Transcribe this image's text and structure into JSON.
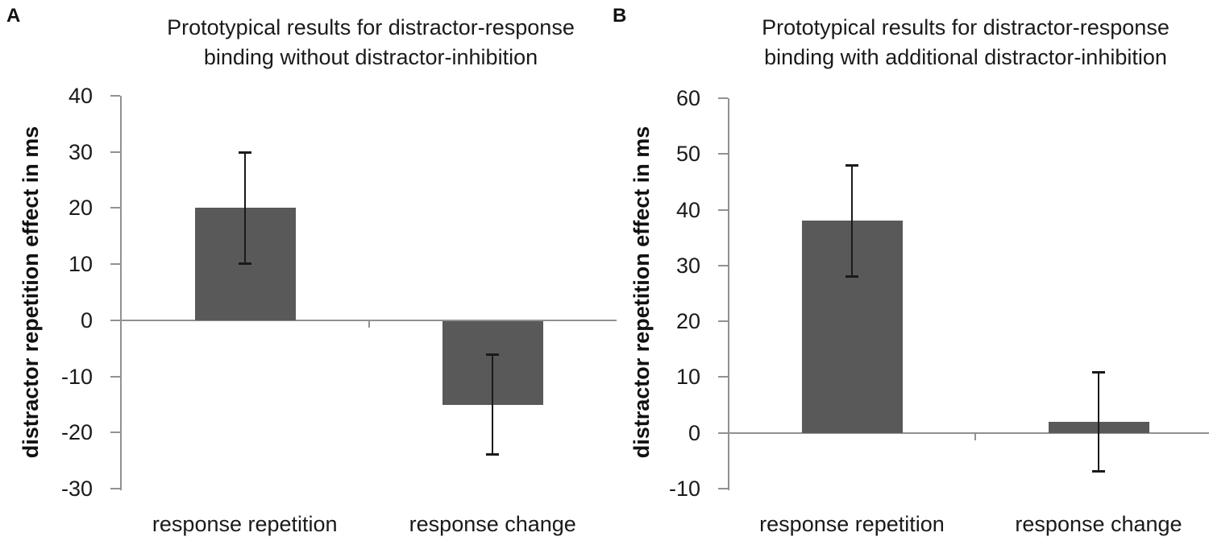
{
  "figure": {
    "background": "#ffffff"
  },
  "chart_data": [
    {
      "type": "bar",
      "panel_label": "A",
      "title": "Prototypical results for distractor-response binding without distractor-inhibition",
      "title_lines": [
        "Prototypical results for distractor-response",
        "binding without distractor-inhibition"
      ],
      "ylabel": "distractor repetition effect in ms",
      "xlabel": "",
      "categories": [
        "response repetition",
        "response change"
      ],
      "values": [
        20,
        -15
      ],
      "error_low": [
        10,
        -24
      ],
      "error_high": [
        30,
        -6
      ],
      "ylim": [
        -30,
        40
      ],
      "ytick_step": 10,
      "ytick_labels": [
        "40",
        "30",
        "20",
        "10",
        "0",
        "-10",
        "-20",
        "-30"
      ],
      "grid": false,
      "legend": null,
      "bar_color": "#595959",
      "axis_color": "#919191",
      "error_color": "#1a1a1a"
    },
    {
      "type": "bar",
      "panel_label": "B",
      "title": "Prototypical results for distractor-response binding with additional distractor-inhibition",
      "title_lines": [
        "Prototypical results for distractor-response",
        "binding with additional distractor-inhibition"
      ],
      "ylabel": "distractor repetition effect in ms",
      "xlabel": "",
      "categories": [
        "response repetition",
        "response change"
      ],
      "values": [
        38,
        2
      ],
      "error_low": [
        28,
        -7
      ],
      "error_high": [
        48,
        11
      ],
      "ylim": [
        -10,
        60
      ],
      "ytick_step": 10,
      "ytick_labels": [
        "60",
        "50",
        "40",
        "30",
        "20",
        "10",
        "0",
        "-10"
      ],
      "grid": false,
      "legend": null,
      "bar_color": "#595959",
      "axis_color": "#919191",
      "error_color": "#1a1a1a"
    }
  ]
}
